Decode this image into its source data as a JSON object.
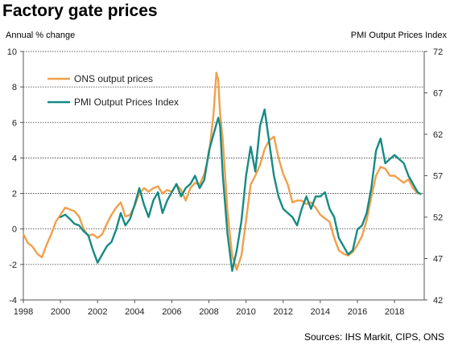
{
  "title": "Factory gate prices",
  "source": "Sources: IHS Markit, CIPS, ONS",
  "colors": {
    "ons": "#F0A04B",
    "pmi": "#168A84",
    "grid": "#333333",
    "axis": "#555555"
  },
  "chart_data": {
    "type": "line",
    "title": "Factory gate prices",
    "ylabel": "Annual % change",
    "y2label": "PMI Output  Prices Index",
    "xlim": [
      1998,
      2019.6
    ],
    "ylim": [
      -4,
      10
    ],
    "y2lim": [
      42,
      72
    ],
    "x_ticks": [
      1998,
      2000,
      2002,
      2004,
      2006,
      2008,
      2010,
      2012,
      2014,
      2016,
      2018
    ],
    "y_ticks": [
      -4,
      -2,
      0,
      2,
      4,
      6,
      8,
      10
    ],
    "y2_ticks": [
      42,
      47,
      52,
      57,
      62,
      67,
      72
    ],
    "grid": "horizontal",
    "legend_position": "top-left",
    "series": [
      {
        "name": "ONS output prices",
        "axis": "left",
        "color": "#F0A04B",
        "x": [
          1998.0,
          1998.25,
          1998.5,
          1998.75,
          1999.0,
          1999.25,
          1999.5,
          1999.75,
          2000.0,
          2000.25,
          2000.5,
          2000.75,
          2001.0,
          2001.25,
          2001.5,
          2001.75,
          2002.0,
          2002.25,
          2002.5,
          2002.75,
          2003.0,
          2003.25,
          2003.5,
          2003.75,
          2004.0,
          2004.25,
          2004.5,
          2004.75,
          2005.0,
          2005.25,
          2005.5,
          2005.75,
          2006.0,
          2006.25,
          2006.5,
          2006.75,
          2007.0,
          2007.25,
          2007.5,
          2007.75,
          2008.0,
          2008.25,
          2008.4,
          2008.5,
          2008.6,
          2008.75,
          2009.0,
          2009.25,
          2009.5,
          2009.75,
          2010.0,
          2010.25,
          2010.5,
          2010.75,
          2011.0,
          2011.25,
          2011.5,
          2011.75,
          2012.0,
          2012.25,
          2012.5,
          2012.75,
          2013.0,
          2013.25,
          2013.5,
          2013.75,
          2014.0,
          2014.25,
          2014.5,
          2014.75,
          2015.0,
          2015.25,
          2015.5,
          2015.75,
          2016.0,
          2016.25,
          2016.5,
          2016.75,
          2017.0,
          2017.25,
          2017.5,
          2017.75,
          2018.0,
          2018.25,
          2018.5,
          2018.75,
          2019.0,
          2019.25
        ],
        "y": [
          -0.3,
          -0.8,
          -1.0,
          -1.4,
          -1.6,
          -0.9,
          -0.3,
          0.4,
          0.8,
          1.2,
          1.1,
          1.0,
          0.7,
          0.0,
          -0.4,
          -0.3,
          -0.5,
          -0.3,
          0.3,
          0.8,
          1.2,
          1.5,
          0.7,
          0.8,
          1.3,
          2.0,
          2.3,
          2.1,
          2.3,
          2.4,
          2.0,
          2.2,
          2.1,
          2.5,
          2.2,
          1.6,
          2.3,
          2.6,
          2.5,
          3.1,
          4.2,
          6.5,
          8.8,
          8.4,
          6.5,
          5.0,
          1.0,
          -1.5,
          -2.3,
          -1.5,
          0.5,
          2.5,
          3.0,
          3.6,
          4.5,
          5.0,
          5.2,
          4.0,
          3.1,
          2.5,
          1.5,
          1.6,
          1.6,
          1.4,
          1.5,
          1.2,
          0.8,
          0.6,
          0.4,
          -0.5,
          -1.2,
          -1.4,
          -1.5,
          -1.3,
          -0.9,
          -0.4,
          0.5,
          1.8,
          3.0,
          3.5,
          3.4,
          3.0,
          3.0,
          2.8,
          2.6,
          2.8,
          2.3,
          2.0
        ]
      },
      {
        "name": "PMI Output Prices Index",
        "axis": "right",
        "color": "#168A84",
        "x": [
          2000.0,
          2000.25,
          2000.5,
          2000.75,
          2001.0,
          2001.25,
          2001.5,
          2001.75,
          2002.0,
          2002.25,
          2002.5,
          2002.75,
          2003.0,
          2003.25,
          2003.5,
          2003.75,
          2004.0,
          2004.25,
          2004.5,
          2004.75,
          2005.0,
          2005.25,
          2005.5,
          2005.75,
          2006.0,
          2006.25,
          2006.5,
          2006.75,
          2007.0,
          2007.25,
          2007.5,
          2007.75,
          2008.0,
          2008.25,
          2008.5,
          2008.6,
          2008.75,
          2009.0,
          2009.25,
          2009.5,
          2009.75,
          2010.0,
          2010.25,
          2010.5,
          2010.75,
          2011.0,
          2011.25,
          2011.5,
          2011.75,
          2012.0,
          2012.25,
          2012.5,
          2012.75,
          2013.0,
          2013.25,
          2013.5,
          2013.75,
          2014.0,
          2014.25,
          2014.5,
          2014.75,
          2015.0,
          2015.25,
          2015.5,
          2015.75,
          2016.0,
          2016.25,
          2016.5,
          2016.75,
          2017.0,
          2017.25,
          2017.5,
          2017.75,
          2018.0,
          2018.25,
          2018.5,
          2018.75,
          2019.0,
          2019.25,
          2019.4
        ],
        "y": [
          52.0,
          52.3,
          51.8,
          51.2,
          51.0,
          50.3,
          49.8,
          48.0,
          46.5,
          47.5,
          48.5,
          49.0,
          50.5,
          52.5,
          51.0,
          51.8,
          53.5,
          55.5,
          53.5,
          52.0,
          54.0,
          55.0,
          52.5,
          54.0,
          55.0,
          56.0,
          54.5,
          55.5,
          56.0,
          57.0,
          55.5,
          56.5,
          60.0,
          62.0,
          64.0,
          63.0,
          57.0,
          50.0,
          45.5,
          48.0,
          51.5,
          57.0,
          60.5,
          57.5,
          63.0,
          65.0,
          61.0,
          57.0,
          54.5,
          53.0,
          52.5,
          52.0,
          51.0,
          53.0,
          54.5,
          53.0,
          54.5,
          54.5,
          55.0,
          53.0,
          52.0,
          49.5,
          48.5,
          47.5,
          48.0,
          50.5,
          51.0,
          52.5,
          55.5,
          60.0,
          61.5,
          58.5,
          59.0,
          59.5,
          59.0,
          58.5,
          57.0,
          56.0,
          55.0,
          54.8
        ]
      }
    ]
  }
}
